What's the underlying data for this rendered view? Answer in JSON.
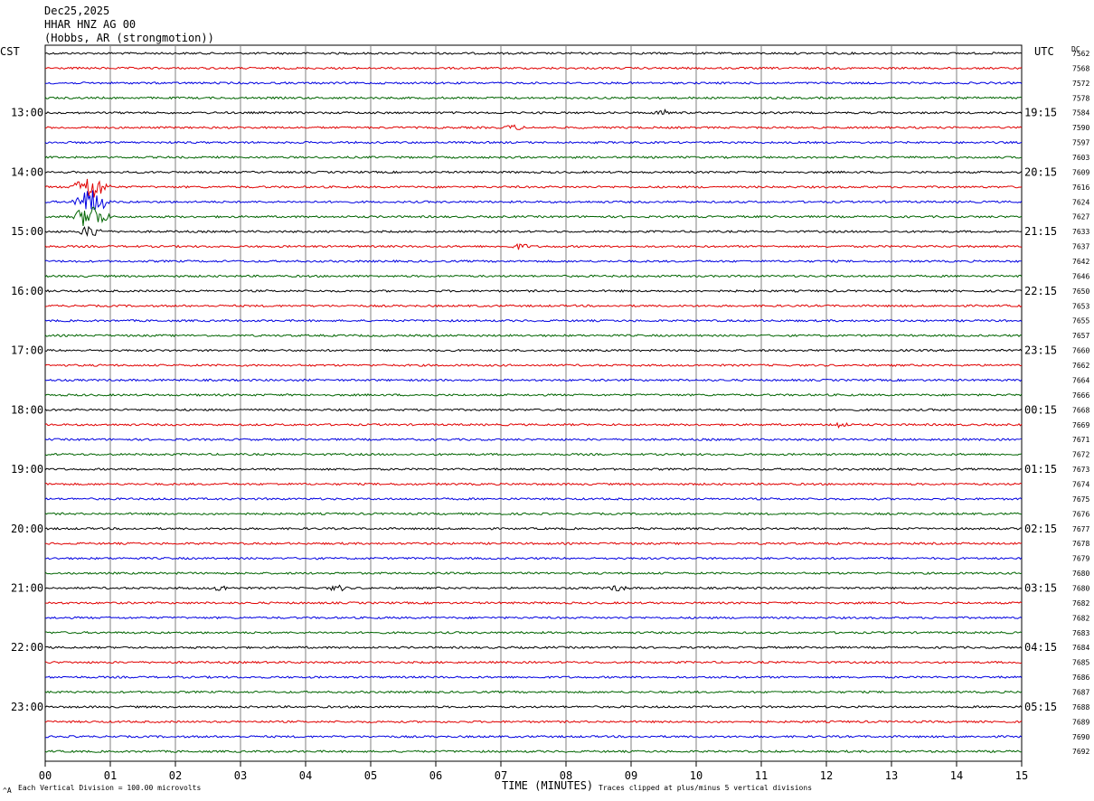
{
  "header": {
    "date": "Dec25,2025",
    "station": "HHAR HNZ AG 00",
    "location": "(Hobbs, AR (strongmotion))"
  },
  "left_axis_title": "CST",
  "right_axis_title": "UTC",
  "dc_title": "DC",
  "footer": {
    "left": "Each Vertical Division =  100.00 microvolts",
    "right": "Traces clipped at plus/minus 5 vertical divisions",
    "corner": "^A"
  },
  "chart_data": {
    "type": "line",
    "title": "",
    "xlabel": "TIME (MINUTES)",
    "x_ticks": [
      "00",
      "01",
      "02",
      "03",
      "04",
      "05",
      "06",
      "07",
      "08",
      "09",
      "10",
      "11",
      "12",
      "13",
      "14",
      "15"
    ],
    "xlim": [
      0,
      15
    ],
    "grid": true,
    "trace_colors": [
      "#000000",
      "#e00000",
      "#0000e0",
      "#006400"
    ],
    "left_labels": [
      "13:00",
      "14:00",
      "15:00",
      "16:00",
      "17:00",
      "18:00",
      "19:00",
      "20:00",
      "21:00",
      "22:00",
      "23:00"
    ],
    "right_labels": [
      "19:15",
      "20:15",
      "21:15",
      "22:15",
      "23:15",
      "00:15",
      "01:15",
      "02:15",
      "03:15",
      "04:15",
      "05:15"
    ],
    "first_labeled_row": 4,
    "rows_per_label": 4,
    "dc_offsets": [
      "7562",
      "7568",
      "7572",
      "7578",
      "7584",
      "7590",
      "7597",
      "7603",
      "7609",
      "7616",
      "7624",
      "7627",
      "7633",
      "7637",
      "7642",
      "7646",
      "7650",
      "7653",
      "7655",
      "7657",
      "7660",
      "7662",
      "7664",
      "7666",
      "7668",
      "7669",
      "7671",
      "7672",
      "7673",
      "7674",
      "7675",
      "7676",
      "7677",
      "7678",
      "7679",
      "7680",
      "7680",
      "7682",
      "7682",
      "7683",
      "7684",
      "7685",
      "7686",
      "7687",
      "7688",
      "7689",
      "7690",
      "7692"
    ],
    "events": [
      {
        "row": 10,
        "minute": 0.7,
        "amplitude": "large",
        "note": ""
      },
      {
        "row": 4,
        "minute": 9.5,
        "amplitude": "small"
      },
      {
        "row": 5,
        "minute": 7.2,
        "amplitude": "small"
      },
      {
        "row": 9,
        "minute": 0.7,
        "amplitude": "large"
      },
      {
        "row": 11,
        "minute": 0.7,
        "amplitude": "large"
      },
      {
        "row": 12,
        "minute": 0.7,
        "amplitude": "medium"
      },
      {
        "row": 13,
        "minute": 7.3,
        "amplitude": "small"
      },
      {
        "row": 25,
        "minute": 12.2,
        "amplitude": "small"
      },
      {
        "row": 36,
        "minute": 2.7,
        "amplitude": "small"
      },
      {
        "row": 36,
        "minute": 4.5,
        "amplitude": "small"
      },
      {
        "row": 36,
        "minute": 8.8,
        "amplitude": "small"
      }
    ]
  }
}
